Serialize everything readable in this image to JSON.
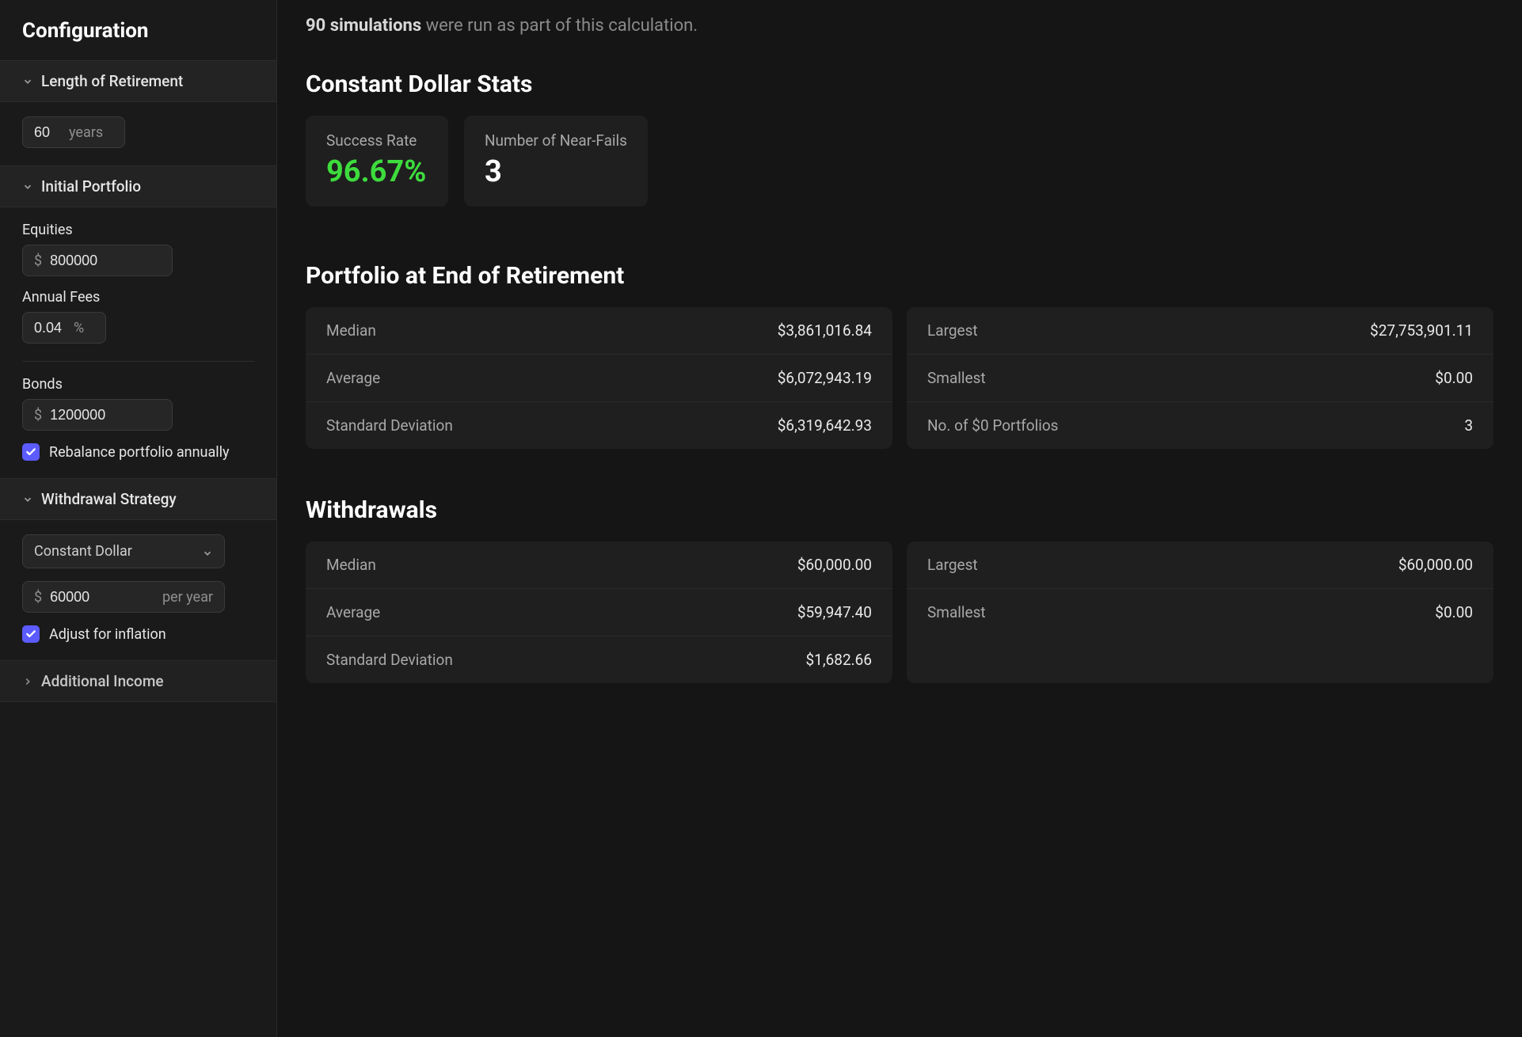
{
  "colors": {
    "page_bg": "#151515",
    "sidebar_bg": "#1a1a1a",
    "panel_bg": "#1f1f1f",
    "input_bg": "#262626",
    "border": "#3a3a3a",
    "text": "#e6e6e6",
    "muted": "#8a8a8a",
    "accent_checkbox": "#5b5bff",
    "success_green": "#3ddc3d"
  },
  "sidebar": {
    "title": "Configuration",
    "length_section": {
      "header": "Length of Retirement",
      "value": "60",
      "unit": "years"
    },
    "portfolio_section": {
      "header": "Initial Portfolio",
      "equities_label": "Equities",
      "equities_value": "800000",
      "annual_fees_label": "Annual Fees",
      "annual_fees_value": "0.04",
      "annual_fees_unit": "%",
      "bonds_label": "Bonds",
      "bonds_value": "1200000",
      "rebalance_label": "Rebalance portfolio annually",
      "rebalance_checked": true,
      "currency_prefix": "$"
    },
    "withdrawal_section": {
      "header": "Withdrawal Strategy",
      "strategy_selected": "Constant Dollar",
      "amount_value": "60000",
      "amount_unit": "per year",
      "currency_prefix": "$",
      "adjust_inflation_label": "Adjust for inflation",
      "adjust_inflation_checked": true
    },
    "additional_income_section": {
      "header": "Additional Income"
    }
  },
  "main": {
    "sim_count": "90 simulations",
    "sim_suffix": " were run as part of this calculation.",
    "stats_title": "Constant Dollar Stats",
    "success_rate_label": "Success Rate",
    "success_rate_value": "96.67%",
    "near_fails_label": "Number of Near-Fails",
    "near_fails_value": "3",
    "portfolio_title": "Portfolio at End of Retirement",
    "portfolio_left": [
      {
        "k": "Median",
        "v": "$3,861,016.84"
      },
      {
        "k": "Average",
        "v": "$6,072,943.19"
      },
      {
        "k": "Standard Deviation",
        "v": "$6,319,642.93"
      }
    ],
    "portfolio_right": [
      {
        "k": "Largest",
        "v": "$27,753,901.11"
      },
      {
        "k": "Smallest",
        "v": "$0.00"
      },
      {
        "k": "No. of $0 Portfolios",
        "v": "3"
      }
    ],
    "withdrawals_title": "Withdrawals",
    "withdrawals_left": [
      {
        "k": "Median",
        "v": "$60,000.00"
      },
      {
        "k": "Average",
        "v": "$59,947.40"
      },
      {
        "k": "Standard Deviation",
        "v": "$1,682.66"
      }
    ],
    "withdrawals_right": [
      {
        "k": "Largest",
        "v": "$60,000.00"
      },
      {
        "k": "Smallest",
        "v": "$0.00"
      }
    ]
  }
}
